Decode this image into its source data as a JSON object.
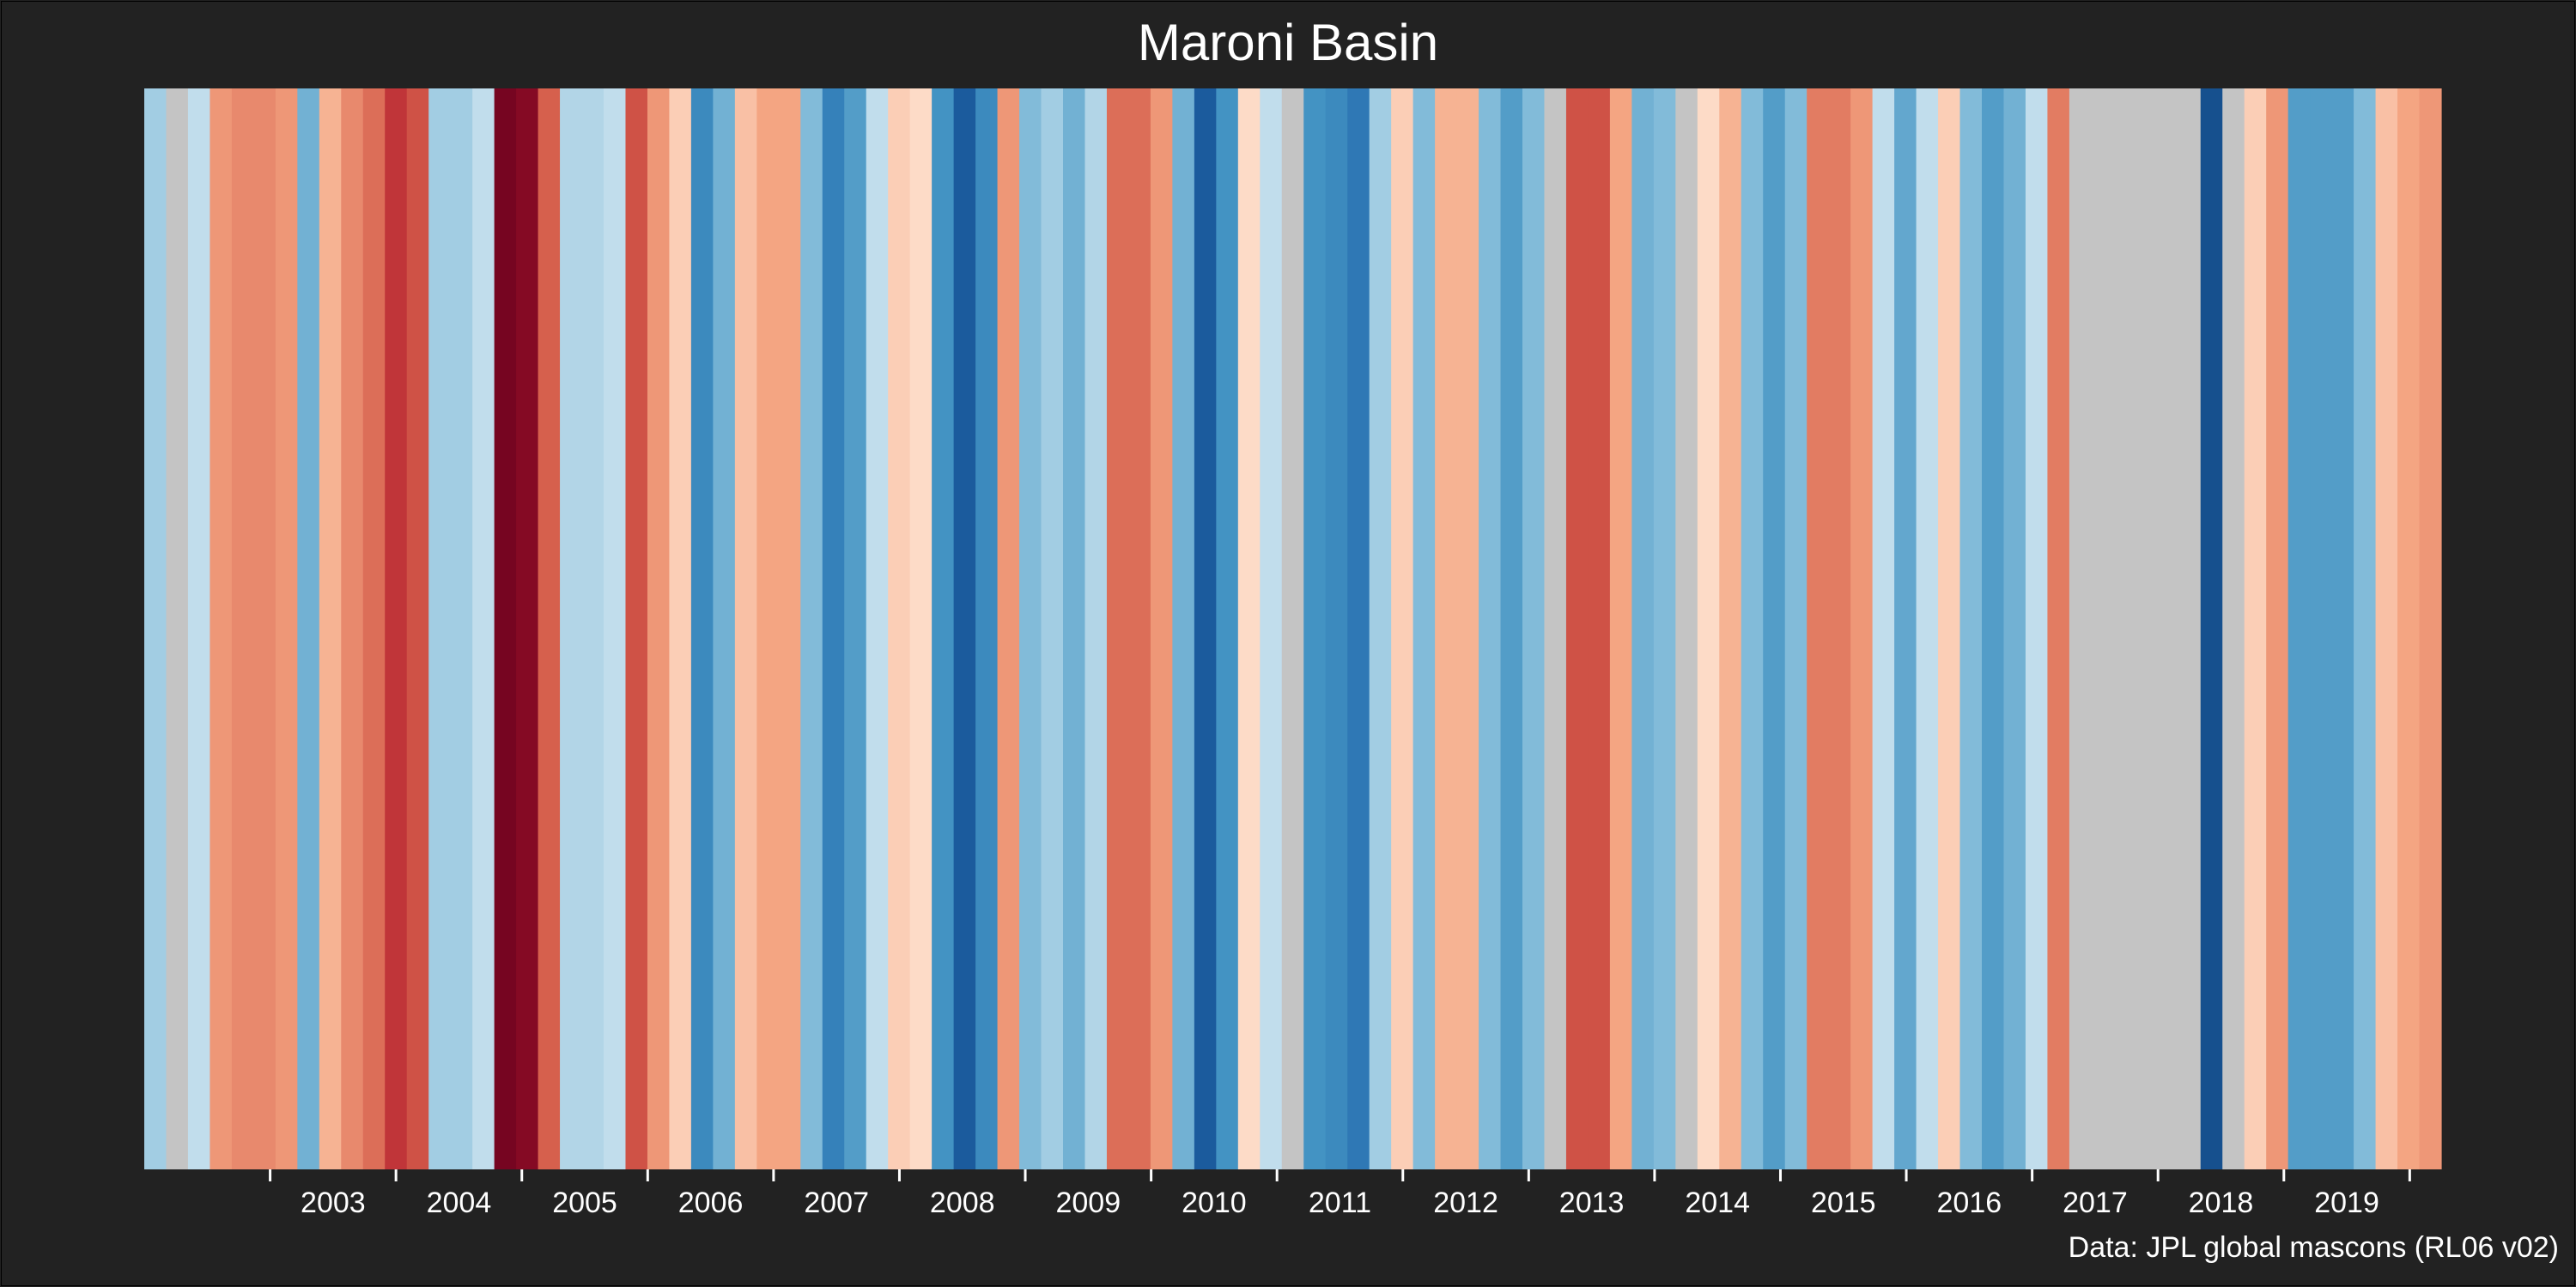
{
  "chart_data": {
    "type": "heatmap",
    "title": "Maroni Basin",
    "x_ticks": [
      "2003",
      "2004",
      "2005",
      "2006",
      "2007",
      "2008",
      "2009",
      "2010",
      "2011",
      "2012",
      "2013",
      "2014",
      "2015",
      "2016",
      "2017",
      "2018",
      "2019"
    ],
    "x_range": [
      2002.0,
      2020.25
    ],
    "y_range": null,
    "missing_color": "#c4c4c4",
    "colormap": "RdBu_r (red = high, blue = low)",
    "stripes_note": "monthly stripes, value = relative anomaly level from -1 (deep blue) to +1 (deep red); null = missing month",
    "stripes": [
      -0.2,
      null,
      -0.1,
      0.3,
      0.35,
      0.35,
      0.3,
      -0.35,
      0.2,
      0.35,
      0.45,
      0.65,
      0.55,
      -0.2,
      -0.2,
      -0.1,
      0.95,
      0.9,
      0.5,
      -0.15,
      -0.15,
      -0.1,
      0.55,
      0.3,
      0.1,
      -0.55,
      -0.35,
      0.15,
      0.25,
      0.25,
      -0.3,
      -0.6,
      -0.45,
      -0.1,
      0.1,
      0.05,
      -0.5,
      -0.8,
      -0.55,
      0.3,
      -0.3,
      -0.2,
      -0.35,
      -0.15,
      0.45,
      0.45,
      0.3,
      -0.35,
      -0.8,
      -0.5,
      0.05,
      -0.1,
      null,
      -0.5,
      -0.55,
      -0.65,
      -0.2,
      0.1,
      -0.3,
      0.2,
      0.2,
      -0.3,
      -0.45,
      -0.3,
      null,
      0.55,
      0.55,
      0.25,
      -0.35,
      -0.3,
      null,
      0.05,
      0.2,
      -0.3,
      -0.45,
      -0.3,
      0.4,
      0.4,
      0.3,
      -0.1,
      -0.4,
      -0.1,
      0.1,
      -0.3,
      -0.45,
      -0.35,
      -0.1,
      0.4,
      null,
      null,
      null,
      null,
      null,
      null,
      -0.85,
      null,
      0.1,
      0.3,
      -0.45,
      -0.45,
      -0.45,
      -0.3,
      0.15,
      0.25,
      0.3
    ],
    "caption": "Data: JPL global mascons (RL06 v02)"
  },
  "colors": {
    "background": "#222222",
    "text": "#ffffff",
    "missing": "#c4c4c4"
  }
}
